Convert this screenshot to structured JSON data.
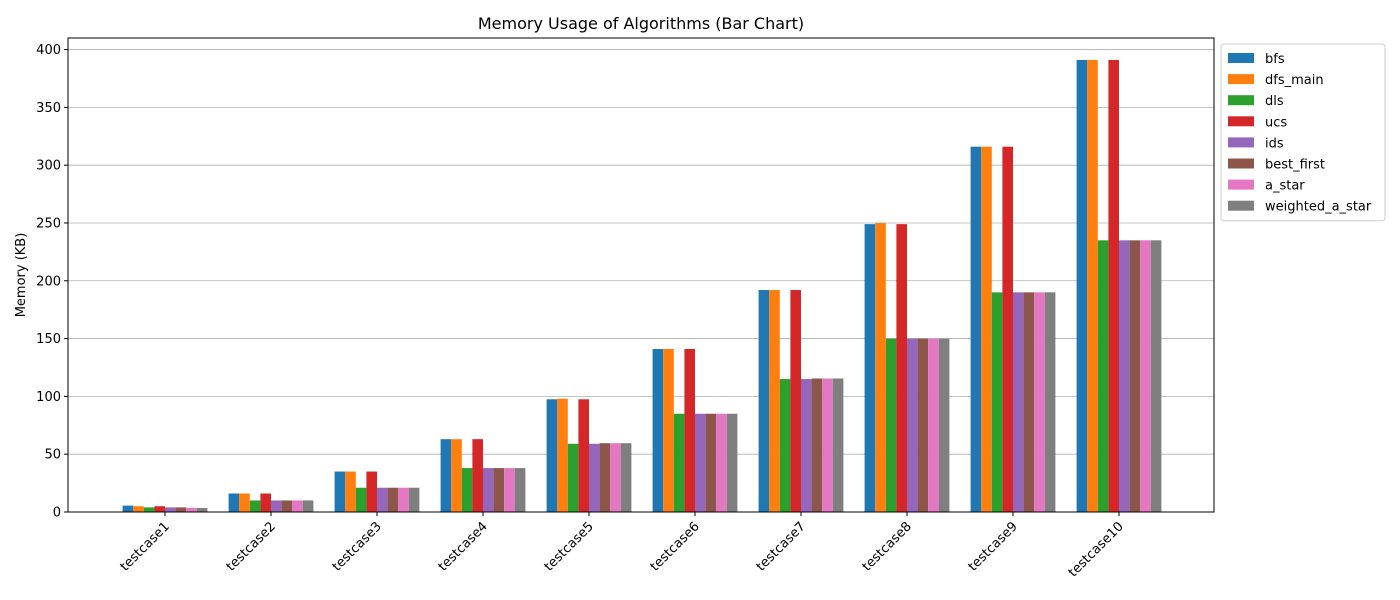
{
  "chart_data": {
    "type": "bar",
    "title": "Memory Usage of Algorithms (Bar Chart)",
    "xlabel": "",
    "ylabel": "Memory (KB)",
    "ylim": [
      0,
      410
    ],
    "yticks": [
      0,
      50,
      100,
      150,
      200,
      250,
      300,
      350,
      400
    ],
    "grid": "y",
    "legend_position": "outside top-right",
    "categories": [
      "testcase1",
      "testcase2",
      "testcase3",
      "testcase4",
      "testcase5",
      "testcase6",
      "testcase7",
      "testcase8",
      "testcase9",
      "testcase10"
    ],
    "series": [
      {
        "name": "bfs",
        "color": "#1f77b4",
        "values": [
          5.5,
          16,
          35,
          63,
          97.5,
          141,
          192,
          249,
          316,
          391
        ]
      },
      {
        "name": "dfs_main",
        "color": "#ff7f0e",
        "values": [
          5,
          16,
          35,
          63,
          98,
          141,
          192,
          250,
          316,
          391
        ]
      },
      {
        "name": "dls",
        "color": "#2ca02c",
        "values": [
          4,
          10,
          21,
          38,
          59,
          85,
          115,
          150,
          190,
          235
        ]
      },
      {
        "name": "ucs",
        "color": "#d62728",
        "values": [
          5,
          16,
          35,
          63,
          97.5,
          141,
          192,
          249,
          316,
          391
        ]
      },
      {
        "name": "ids",
        "color": "#9467bd",
        "values": [
          4,
          10,
          21,
          38,
          59,
          85,
          115,
          150,
          190,
          235
        ]
      },
      {
        "name": "best_first",
        "color": "#8c564b",
        "values": [
          4,
          10,
          21,
          38,
          59.5,
          85,
          115.5,
          150,
          190,
          235
        ]
      },
      {
        "name": "a_star",
        "color": "#e377c2",
        "values": [
          3.5,
          10,
          21,
          38,
          59.5,
          85,
          115.5,
          150,
          190,
          235
        ]
      },
      {
        "name": "weighted_a_star",
        "color": "#7f7f7f",
        "values": [
          3.5,
          10,
          21,
          38,
          59.5,
          85,
          115.5,
          150,
          190,
          235
        ]
      }
    ]
  }
}
